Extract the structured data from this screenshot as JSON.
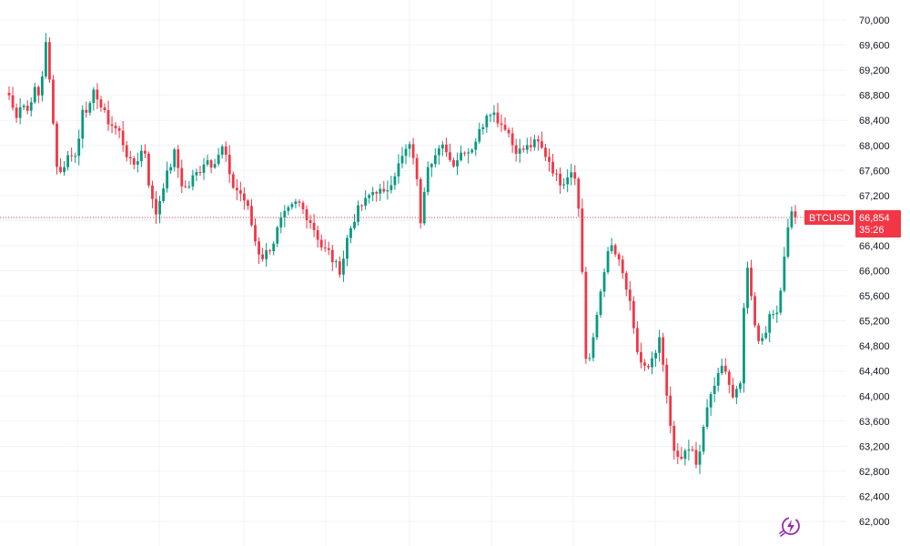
{
  "chart_data": {
    "type": "candlestick",
    "symbol": "BTCUSD",
    "last_price": "66,854",
    "countdown": "35:26",
    "ylim": [
      61800,
      70300
    ],
    "y_ticks": [
      "70,000",
      "69,600",
      "69,200",
      "68,800",
      "68,400",
      "68,000",
      "67,600",
      "67,200",
      "66,800",
      "66,400",
      "66,000",
      "65,600",
      "65,200",
      "64,800",
      "64,400",
      "64,000",
      "63,600",
      "63,200",
      "62,800",
      "62,400",
      "62,000"
    ],
    "y_tick_values": [
      70000,
      69600,
      69200,
      68800,
      68400,
      68000,
      67600,
      67200,
      66800,
      66400,
      66000,
      65600,
      65200,
      64800,
      64400,
      64000,
      63600,
      63200,
      62800,
      62400,
      62000
    ],
    "colors": {
      "up": "#089981",
      "down": "#f23645",
      "price_line": "#f23645",
      "logo": "#9c27b0"
    },
    "grid": true,
    "close_path": [
      68800,
      68450,
      68700,
      68550,
      68900,
      68750,
      69700,
      68500,
      67500,
      67700,
      67900,
      67800,
      68650,
      68550,
      68900,
      68600,
      68400,
      68300,
      68200,
      67900,
      67650,
      67800,
      68000,
      67200,
      66900,
      67350,
      67600,
      67900,
      67400,
      67300,
      67500,
      67600,
      67800,
      67700,
      67850,
      68000,
      67400,
      67300,
      67200,
      66950,
      66500,
      66200,
      66300,
      66450,
      66750,
      66900,
      67000,
      67100,
      66950,
      66800,
      66600,
      66350,
      66300,
      66100,
      66000,
      66500,
      66800,
      67000,
      67100,
      67250,
      67300,
      67200,
      67400,
      67600,
      67800,
      68000,
      67800,
      66800,
      67700,
      67800,
      67900,
      68000,
      67700,
      67800,
      67950,
      67900,
      68100,
      68300,
      68600,
      68500,
      68350,
      68300,
      68000,
      67900,
      67950,
      68000,
      68050,
      67900,
      67750,
      67500,
      67400,
      67550,
      67650,
      66700,
      64400,
      64800,
      65500,
      66100,
      66400,
      66200,
      65900,
      65500,
      64800,
      64500,
      64400,
      64600,
      64900,
      64000,
      63300,
      62900,
      63100,
      63200,
      62800,
      63500,
      63900,
      64300,
      64500,
      64200,
      64000,
      64200,
      66200,
      65500,
      64800,
      65000,
      65400,
      65300,
      66000,
      66900,
      66854
    ],
    "wick_seed": 7
  }
}
